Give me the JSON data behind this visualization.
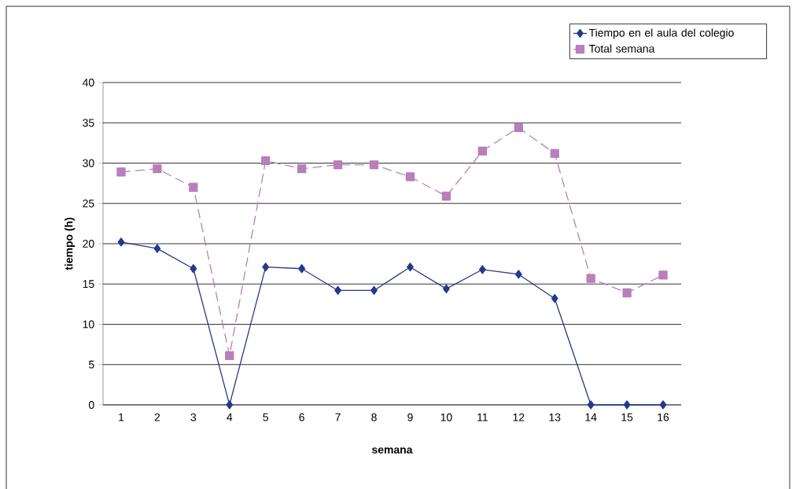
{
  "chart_data": {
    "type": "line",
    "xlabel": "semana",
    "ylabel": "tiempo (h)",
    "categories": [
      "1",
      "2",
      "3",
      "4",
      "5",
      "6",
      "7",
      "8",
      "9",
      "10",
      "11",
      "12",
      "13",
      "14",
      "15",
      "16"
    ],
    "series": [
      {
        "name": "Tiempo en el aula del colegio",
        "color": "#233a8c",
        "marker": "diamond",
        "line_style": "solid",
        "values": [
          20.2,
          19.4,
          16.9,
          0,
          17.1,
          16.9,
          14.2,
          14.2,
          17.1,
          14.4,
          16.8,
          16.2,
          13.2,
          0,
          0,
          0
        ]
      },
      {
        "name": "Total semana",
        "color": "#b87fbb",
        "marker": "square",
        "line_style": "dashed",
        "values": [
          28.9,
          29.3,
          27.0,
          6.1,
          30.3,
          29.3,
          29.8,
          29.8,
          28.3,
          25.9,
          31.5,
          34.4,
          31.2,
          15.7,
          13.9,
          16.1
        ]
      }
    ],
    "ylim": [
      0,
      40
    ],
    "yticks": [
      0,
      5,
      10,
      15,
      20,
      25,
      30,
      35,
      40
    ],
    "grid": "y",
    "legend": "top right"
  }
}
